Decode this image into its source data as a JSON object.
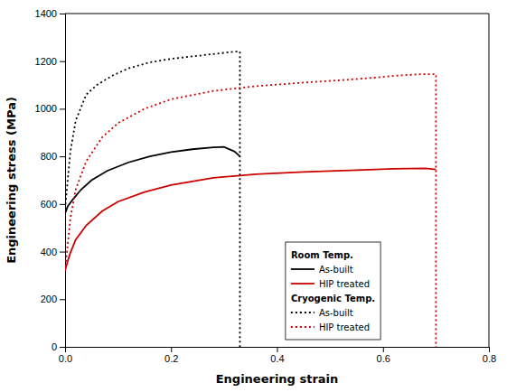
{
  "chart_data": {
    "type": "line",
    "xlabel": "Engineering strain",
    "ylabel": "Engineering stress (MPa)",
    "xlim": [
      0,
      0.8
    ],
    "ylim": [
      0,
      1400
    ],
    "xticks": [
      {
        "value": 0,
        "label": "0.0"
      },
      0.2,
      0.4,
      0.6,
      0.8
    ],
    "yticks": [
      0,
      200,
      400,
      600,
      800,
      1000,
      1200,
      1400
    ],
    "legend": "bottom",
    "series": [
      {
        "name": "As-built",
        "group": "Room Temp.",
        "color": "#000000",
        "line_style": "solid",
        "x": [
          0.0,
          0.005,
          0.015,
          0.03,
          0.05,
          0.08,
          0.12,
          0.16,
          0.2,
          0.24,
          0.28,
          0.3,
          0.32,
          0.33
        ],
        "values": [
          560,
          590,
          620,
          660,
          700,
          740,
          775,
          800,
          818,
          830,
          838,
          840,
          820,
          800
        ]
      },
      {
        "name": "HIP treated",
        "group": "Room Temp.",
        "color": "#cc0000",
        "line_style": "solid",
        "x": [
          0.0,
          0.005,
          0.01,
          0.02,
          0.04,
          0.07,
          0.1,
          0.15,
          0.2,
          0.28,
          0.36,
          0.45,
          0.55,
          0.62,
          0.68,
          0.7
        ],
        "values": [
          320,
          360,
          395,
          450,
          510,
          570,
          610,
          650,
          680,
          710,
          725,
          735,
          742,
          748,
          750,
          745
        ]
      },
      {
        "name": "As-built",
        "group": "Cryogenic Temp.",
        "color": "#000000",
        "line_style": "dotted",
        "x": [
          0.0,
          0.005,
          0.01,
          0.02,
          0.04,
          0.06,
          0.09,
          0.12,
          0.16,
          0.2,
          0.24,
          0.28,
          0.3,
          0.32,
          0.33,
          0.33
        ],
        "values": [
          580,
          700,
          820,
          950,
          1060,
          1100,
          1140,
          1170,
          1195,
          1210,
          1220,
          1230,
          1235,
          1240,
          1240,
          0
        ]
      },
      {
        "name": "HIP treated",
        "group": "Cryogenic Temp.",
        "color": "#cc0000",
        "line_style": "dotted",
        "x": [
          0.0,
          0.005,
          0.01,
          0.02,
          0.04,
          0.07,
          0.1,
          0.15,
          0.2,
          0.28,
          0.36,
          0.45,
          0.52,
          0.58,
          0.63,
          0.67,
          0.7,
          0.7
        ],
        "values": [
          320,
          430,
          540,
          660,
          780,
          880,
          940,
          1000,
          1040,
          1075,
          1095,
          1110,
          1120,
          1130,
          1140,
          1145,
          1145,
          0
        ]
      }
    ]
  }
}
